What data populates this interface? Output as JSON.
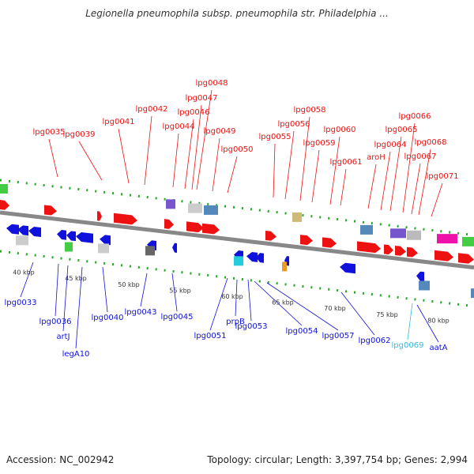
{
  "title": "Legionella pneumophila subsp. pneumophila str. Philadelphia ...",
  "accession": "Accession: NC_002942",
  "topology": "Topology: circular; Length: 3,397,754 bp; Genes: 2,994",
  "colors": {
    "forward": "#ee1111",
    "reverse": "#1111dd",
    "highlight": "#33bbdd",
    "backbone": "#888888",
    "ticks": "#22aa22"
  },
  "scale_labels": [
    "40 kbp",
    "45 kbp",
    "50 kbp",
    "55 kbp",
    "60 kbp",
    "65 kbp",
    "70 kbp",
    "75 kbp",
    "80 kbp"
  ],
  "forward_labels": [
    "lpg0035",
    "lpg0039",
    "lpg0041",
    "lpg0042",
    "lpg0044",
    "lpg0046",
    "lpg0047",
    "lpg0048",
    "lpg0049",
    "lpg0050",
    "lpg0055",
    "lpg0056",
    "lpg0058",
    "lpg0059",
    "lpg0060",
    "lpg0061",
    "aroH",
    "lpg0064",
    "lpg0065",
    "lpg0066",
    "lpg0067",
    "lpg0068",
    "lpg0071"
  ],
  "reverse_labels": [
    "lpg0033",
    "lpg0036",
    "artJ",
    "legA10",
    "lpg0040",
    "lpg0043",
    "lpg0045",
    "lpg0051",
    "prpB",
    "lpg0053",
    "lpg0054",
    "lpg0057",
    "lpg0062",
    "lpg0069",
    "aatA"
  ]
}
